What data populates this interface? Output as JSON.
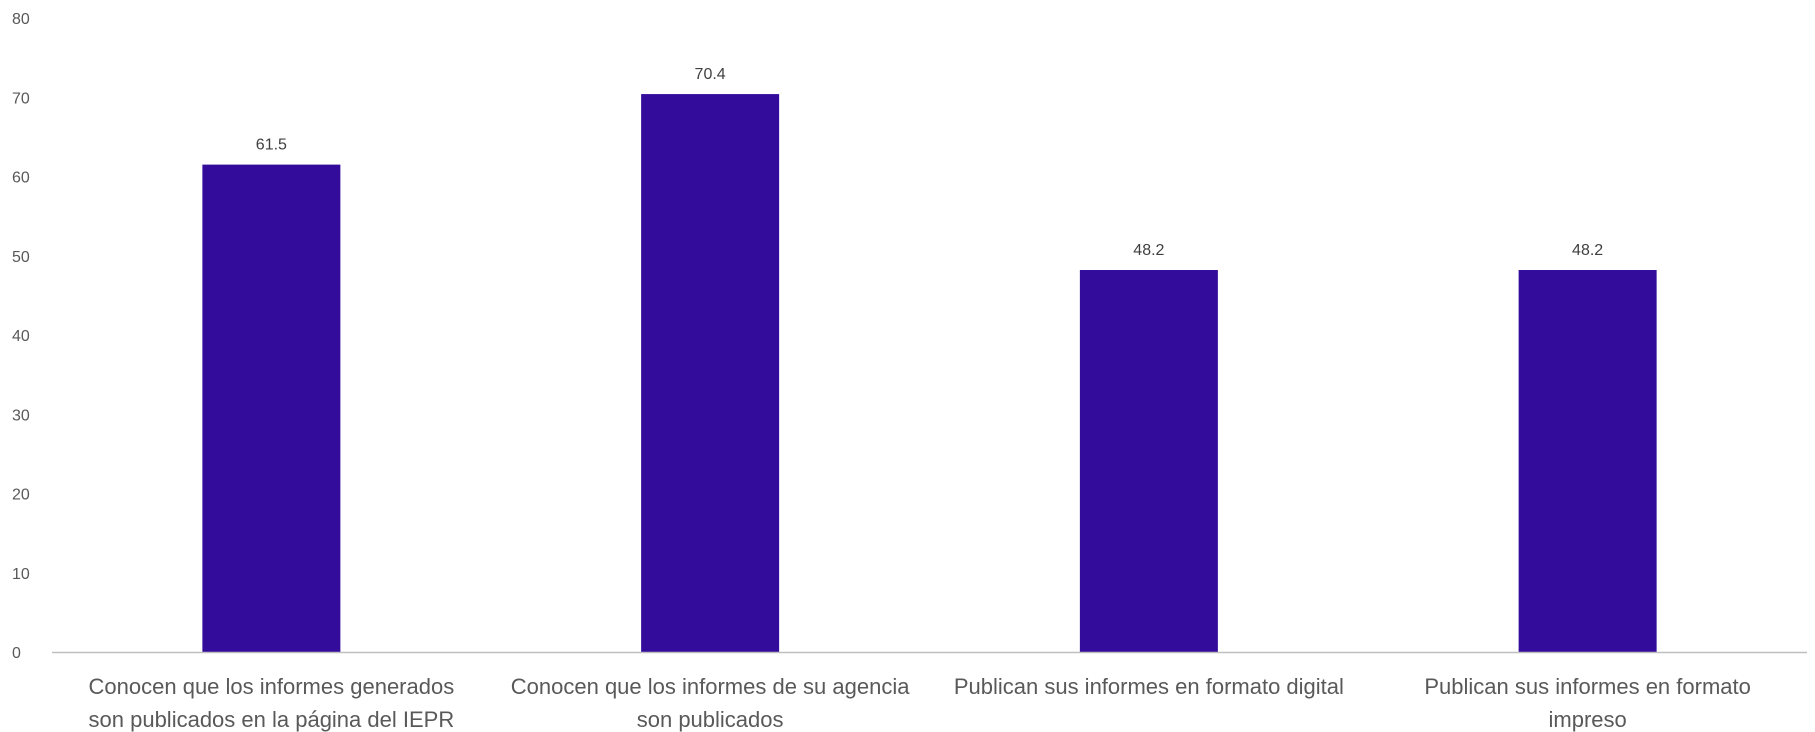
{
  "chart_data": {
    "type": "bar",
    "categories": [
      [
        "Conocen que los informes generados",
        "son publicados en la página del IEPR"
      ],
      [
        "Conocen que los informes de su agencia",
        "son publicados"
      ],
      [
        "Publican sus informes en formato digital"
      ],
      [
        "Publican sus informes en formato",
        "impreso"
      ]
    ],
    "values": [
      61.5,
      70.4,
      48.2,
      48.2
    ],
    "data_labels": [
      "61.5",
      "70.4",
      "48.2",
      "48.2"
    ],
    "y_ticks": [
      0,
      10,
      20,
      30,
      40,
      50,
      60,
      70,
      80
    ],
    "ylim": [
      0,
      80
    ],
    "bar_color": "#340c9c",
    "axis_color": "#bfbfbf",
    "grid": false,
    "title": "",
    "xlabel": "",
    "ylabel": ""
  }
}
